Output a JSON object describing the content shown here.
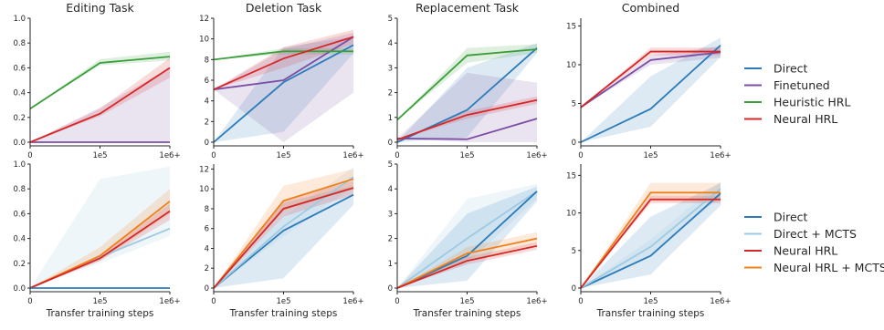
{
  "colors": {
    "direct": "#2b7bba",
    "direct_mcts": "#9ecae1",
    "finetuned": "#7b4ea3",
    "heuristic": "#3a9e3a",
    "neural": "#d62728",
    "neural_mcts": "#f07f1a"
  },
  "legends": [
    {
      "items": [
        {
          "name": "Direct",
          "color_key": "direct"
        },
        {
          "name": "Finetuned",
          "color_key": "finetuned"
        },
        {
          "name": "Heuristic HRL",
          "color_key": "heuristic"
        },
        {
          "name": "Neural HRL",
          "color_key": "neural"
        }
      ]
    },
    {
      "items": [
        {
          "name": "Direct",
          "color_key": "direct"
        },
        {
          "name": "Direct + MCTS",
          "color_key": "direct_mcts"
        },
        {
          "name": "Neural HRL",
          "color_key": "neural"
        },
        {
          "name": "Neural HRL + MCTS",
          "color_key": "neural_mcts"
        }
      ]
    }
  ],
  "chart_data": [
    {
      "type": "line",
      "title": "Editing Task",
      "xlabel": "",
      "x": [
        0,
        1,
        2
      ],
      "xticklabels": [
        "0",
        "1e5",
        "1e6+"
      ],
      "ylim": [
        0,
        1.0
      ],
      "yticks": [
        0,
        0.2,
        0.4,
        0.6,
        0.8,
        1.0
      ],
      "yticklabels": [
        "0.0",
        "0.2",
        "0.4",
        "0.6",
        "0.8",
        "1.0"
      ],
      "series": [
        {
          "name": "Finetuned",
          "color_key": "finetuned",
          "values": [
            0,
            0,
            0
          ],
          "lower": [
            0,
            0,
            0
          ],
          "upper": [
            0,
            0.28,
            0.6
          ]
        },
        {
          "name": "Heuristic HRL",
          "color_key": "heuristic",
          "values": [
            0.27,
            0.64,
            0.69
          ],
          "lower": [
            0.27,
            0.62,
            0.66
          ],
          "upper": [
            0.27,
            0.67,
            0.73
          ]
        },
        {
          "name": "Neural HRL",
          "color_key": "neural",
          "values": [
            0,
            0.23,
            0.6
          ],
          "lower": [
            0,
            0.21,
            0.52
          ],
          "upper": [
            0,
            0.27,
            0.68
          ]
        }
      ]
    },
    {
      "type": "line",
      "title": "Deletion Task",
      "xlabel": "",
      "x": [
        0,
        1,
        2
      ],
      "xticklabels": [
        "0",
        "1e5",
        "1e6+"
      ],
      "ylim": [
        0,
        12
      ],
      "yticks": [
        0,
        2,
        4,
        6,
        8,
        10,
        12
      ],
      "yticklabels": [
        "0",
        "2",
        "4",
        "6",
        "8",
        "10",
        "12"
      ],
      "series": [
        {
          "name": "Direct",
          "color_key": "direct",
          "values": [
            0,
            5.8,
            9.4
          ],
          "lower": [
            0,
            1.0,
            8.6
          ],
          "upper": [
            0,
            9.2,
            10.2
          ]
        },
        {
          "name": "Finetuned",
          "color_key": "finetuned",
          "values": [
            5.1,
            6.0,
            10.2
          ],
          "lower": [
            5.1,
            0,
            4.8
          ],
          "upper": [
            5.1,
            9.0,
            10.6
          ]
        },
        {
          "name": "Heuristic HRL",
          "color_key": "heuristic",
          "values": [
            8.0,
            8.8,
            8.8
          ],
          "lower": [
            8.0,
            8.5,
            8.5
          ],
          "upper": [
            8.0,
            9.1,
            9.1
          ]
        },
        {
          "name": "Neural HRL",
          "color_key": "neural",
          "values": [
            5.1,
            8.1,
            10.2
          ],
          "lower": [
            5.1,
            7.2,
            9.5
          ],
          "upper": [
            5.1,
            9.2,
            10.9
          ]
        }
      ]
    },
    {
      "type": "line",
      "title": "Replacement Task",
      "xlabel": "",
      "x": [
        0,
        1,
        2
      ],
      "xticklabels": [
        "0",
        "1e5",
        "1e6+"
      ],
      "ylim": [
        0,
        5
      ],
      "yticks": [
        0,
        1,
        2,
        3,
        4,
        5
      ],
      "yticklabels": [
        "0",
        "1",
        "2",
        "3",
        "4",
        "5"
      ],
      "series": [
        {
          "name": "Direct",
          "color_key": "direct",
          "values": [
            0,
            1.3,
            3.8
          ],
          "lower": [
            0,
            0.2,
            3.6
          ],
          "upper": [
            0,
            3.0,
            4.0
          ]
        },
        {
          "name": "Finetuned",
          "color_key": "finetuned",
          "values": [
            0.15,
            0.12,
            0.95
          ],
          "lower": [
            0.15,
            0,
            0
          ],
          "upper": [
            0.15,
            2.8,
            2.4
          ]
        },
        {
          "name": "Heuristic HRL",
          "color_key": "heuristic",
          "values": [
            0.9,
            3.5,
            3.75
          ],
          "lower": [
            0.9,
            3.2,
            3.6
          ],
          "upper": [
            0.9,
            3.8,
            3.95
          ]
        },
        {
          "name": "Neural HRL",
          "color_key": "neural",
          "values": [
            0.1,
            1.1,
            1.7
          ],
          "lower": [
            0.1,
            0.95,
            1.55
          ],
          "upper": [
            0.1,
            1.25,
            1.85
          ]
        }
      ]
    },
    {
      "type": "line",
      "title": "Combined",
      "xlabel": "",
      "x": [
        0,
        1,
        2
      ],
      "xticklabels": [
        "0",
        "1e5",
        "1e6+"
      ],
      "ylim": [
        0,
        16
      ],
      "yticks": [
        0,
        5,
        10,
        15
      ],
      "yticklabels": [
        "0",
        "5",
        "10",
        "15"
      ],
      "series": [
        {
          "name": "Direct",
          "color_key": "direct",
          "values": [
            0,
            4.3,
            12.5
          ],
          "lower": [
            0,
            2.0,
            11.0
          ],
          "upper": [
            0,
            8.5,
            13.5
          ]
        },
        {
          "name": "Finetuned",
          "color_key": "finetuned",
          "values": [
            4.5,
            10.6,
            11.6
          ],
          "lower": [
            4.5,
            10.0,
            10.9
          ],
          "upper": [
            4.5,
            11.2,
            12.4
          ]
        },
        {
          "name": "Neural HRL",
          "color_key": "neural",
          "values": [
            4.5,
            11.7,
            11.7
          ],
          "lower": [
            4.5,
            11.2,
            11.2
          ],
          "upper": [
            4.5,
            12.2,
            12.2
          ]
        }
      ]
    },
    {
      "type": "line",
      "title": "",
      "xlabel": "Transfer training steps",
      "x": [
        0,
        1,
        2
      ],
      "xticklabels": [
        "0",
        "1e5",
        "1e6+"
      ],
      "ylim": [
        0,
        1.0
      ],
      "yticks": [
        0,
        0.2,
        0.4,
        0.6,
        0.8,
        1.0
      ],
      "yticklabels": [
        "0.0",
        "0.2",
        "0.4",
        "0.6",
        "0.8",
        "1.0"
      ],
      "series": [
        {
          "name": "Direct + MCTS",
          "color_key": "direct_mcts",
          "values": [
            0,
            0.25,
            0.48
          ],
          "lower": [
            0,
            0.2,
            0.42
          ],
          "upper": [
            0,
            0.88,
            0.98
          ]
        },
        {
          "name": "Neural HRL + MCTS",
          "color_key": "neural_mcts",
          "values": [
            0,
            0.26,
            0.7
          ],
          "lower": [
            0,
            0.22,
            0.6
          ],
          "upper": [
            0,
            0.33,
            0.8
          ]
        },
        {
          "name": "Neural HRL",
          "color_key": "neural",
          "values": [
            0,
            0.24,
            0.62
          ],
          "lower": [
            0,
            0.22,
            0.55
          ],
          "upper": [
            0,
            0.27,
            0.68
          ]
        },
        {
          "name": "Direct",
          "color_key": "direct",
          "values": [
            0,
            0,
            0
          ],
          "lower": [
            0,
            0,
            0
          ],
          "upper": [
            0,
            0,
            0
          ]
        }
      ]
    },
    {
      "type": "line",
      "title": "",
      "xlabel": "Transfer training steps",
      "x": [
        0,
        1,
        2
      ],
      "xticklabels": [
        "0",
        "1e5",
        "1e6+"
      ],
      "ylim": [
        0,
        12.5
      ],
      "yticks": [
        0,
        2,
        4,
        6,
        8,
        10,
        12
      ],
      "yticklabels": [
        "0",
        "2",
        "4",
        "6",
        "8",
        "10",
        "12"
      ],
      "series": [
        {
          "name": "Direct",
          "color_key": "direct",
          "values": [
            0,
            5.8,
            9.4
          ],
          "lower": [
            0,
            1.0,
            8.4
          ],
          "upper": [
            0,
            8.6,
            10.3
          ]
        },
        {
          "name": "Direct + MCTS",
          "color_key": "direct_mcts",
          "values": [
            0,
            6.2,
            11.2
          ],
          "lower": [
            0,
            5.2,
            10.2
          ],
          "upper": [
            0,
            7.2,
            12.2
          ]
        },
        {
          "name": "Neural HRL + MCTS",
          "color_key": "neural_mcts",
          "values": [
            0,
            8.8,
            11.0
          ],
          "lower": [
            0,
            7.8,
            10.0
          ],
          "upper": [
            0,
            10.3,
            12.0
          ]
        },
        {
          "name": "Neural HRL",
          "color_key": "neural",
          "values": [
            0,
            8.0,
            10.1
          ],
          "lower": [
            0,
            7.2,
            9.4
          ],
          "upper": [
            0,
            8.9,
            10.8
          ]
        }
      ]
    },
    {
      "type": "line",
      "title": "",
      "xlabel": "Transfer training steps",
      "x": [
        0,
        1,
        2
      ],
      "xticklabels": [
        "0",
        "1e5",
        "1e6+"
      ],
      "ylim": [
        0,
        5
      ],
      "yticks": [
        0,
        1,
        2,
        3,
        4,
        5
      ],
      "yticklabels": [
        "0",
        "1",
        "2",
        "3",
        "4",
        "5"
      ],
      "series": [
        {
          "name": "Direct + MCTS",
          "color_key": "direct_mcts",
          "values": [
            0,
            2.0,
            3.9
          ],
          "lower": [
            0,
            1.0,
            3.6
          ],
          "upper": [
            0,
            3.6,
            4.2
          ]
        },
        {
          "name": "Direct",
          "color_key": "direct",
          "values": [
            0,
            1.3,
            3.9
          ],
          "lower": [
            0,
            0.3,
            3.5
          ],
          "upper": [
            0,
            3.0,
            4.1
          ]
        },
        {
          "name": "Neural HRL + MCTS",
          "color_key": "neural_mcts",
          "values": [
            0,
            1.4,
            2.0
          ],
          "lower": [
            0,
            1.15,
            1.75
          ],
          "upper": [
            0,
            1.65,
            2.25
          ]
        },
        {
          "name": "Neural HRL",
          "color_key": "neural",
          "values": [
            0,
            1.1,
            1.7
          ],
          "lower": [
            0,
            0.95,
            1.55
          ],
          "upper": [
            0,
            1.25,
            1.85
          ]
        }
      ]
    },
    {
      "type": "line",
      "title": "",
      "xlabel": "Transfer training steps",
      "x": [
        0,
        1,
        2
      ],
      "xticklabels": [
        "0",
        "1e5",
        "1e6+"
      ],
      "ylim": [
        0,
        16.5
      ],
      "yticks": [
        0,
        5,
        10,
        15
      ],
      "yticklabels": [
        "0",
        "5",
        "10",
        "15"
      ],
      "series": [
        {
          "name": "Direct",
          "color_key": "direct",
          "values": [
            0,
            4.3,
            12.6
          ],
          "lower": [
            0,
            1.8,
            11.0
          ],
          "upper": [
            0,
            9.5,
            14.0
          ]
        },
        {
          "name": "Direct + MCTS",
          "color_key": "direct_mcts",
          "values": [
            0,
            5.5,
            13.2
          ],
          "lower": [
            0,
            4.5,
            12.0
          ],
          "upper": [
            0,
            6.5,
            14.2
          ]
        },
        {
          "name": "Neural HRL + MCTS",
          "color_key": "neural_mcts",
          "values": [
            0,
            12.7,
            12.7
          ],
          "lower": [
            0,
            11.5,
            11.5
          ],
          "upper": [
            0,
            14.0,
            14.0
          ]
        },
        {
          "name": "Neural HRL",
          "color_key": "neural",
          "values": [
            0,
            11.8,
            11.8
          ],
          "lower": [
            0,
            11.3,
            11.3
          ],
          "upper": [
            0,
            12.3,
            12.3
          ]
        }
      ]
    }
  ]
}
